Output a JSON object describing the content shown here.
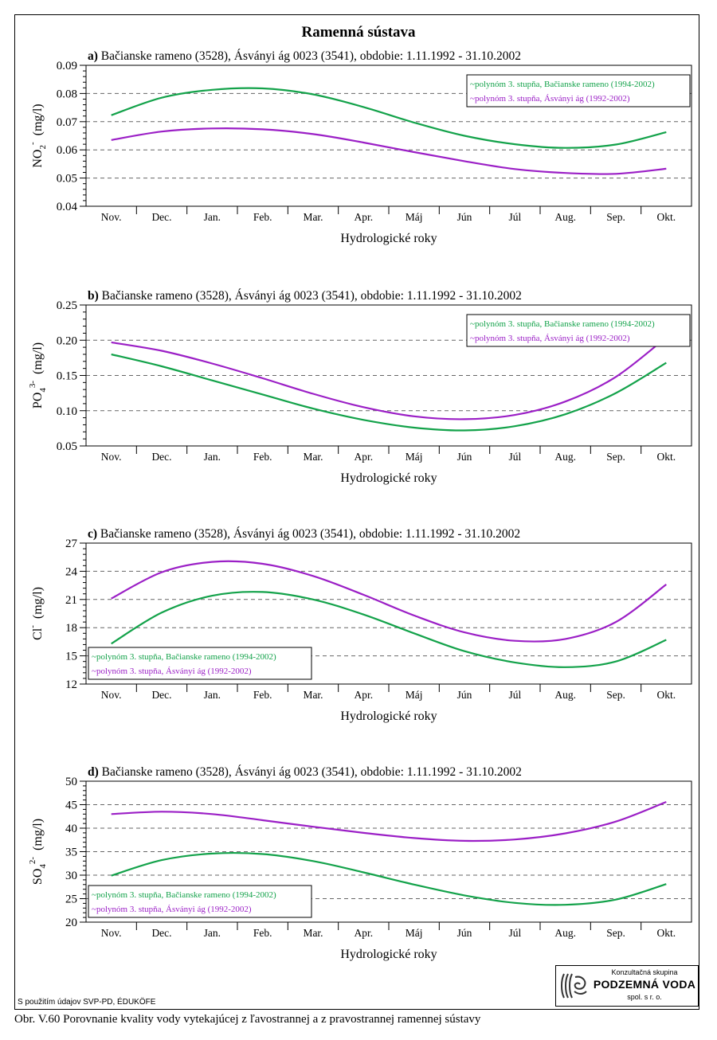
{
  "main_title": "Ramenná sústava",
  "source_note": "S použitím údajov SVP-PD, ÉDUKÖFE",
  "caption": "Obr. V.60 Porovnanie kvality vody vytekajúcej z ľavostrannej a z pravostrannej ramennej sústavy",
  "logo": {
    "line1": "Konzultačná skupina",
    "line2": "PODZEMNÁ VODA",
    "line3": "spol. s r. o."
  },
  "colors": {
    "green": "#13a24a",
    "purple": "#9b1fc6"
  },
  "chart_data": [
    {
      "type": "line",
      "panel_label": "a)",
      "title": "Bačianske rameno (3528), Ásványi ág 0023 (3541), obdobie: 1.11.1992 - 31.10.2002",
      "ylabel": {
        "main": "NO",
        "sub": "2",
        "sup": "-",
        "unit": "(mg/l)"
      },
      "xlabel": "Hydrologické roky",
      "categories": [
        "Nov.",
        "Dec.",
        "Jan.",
        "Feb.",
        "Mar.",
        "Apr.",
        "Máj",
        "Jún",
        "Júl",
        "Aug.",
        "Sep.",
        "Okt."
      ],
      "ylim": [
        0.04,
        0.09
      ],
      "yticks": [
        "0.04",
        "0.05",
        "0.06",
        "0.07",
        "0.08",
        "0.09"
      ],
      "grid": "dashed horizontal",
      "legend_position": "top-right",
      "series": [
        {
          "name": "polynóm 3. stupňa, Bačianske rameno (1994-2002)",
          "color": "green",
          "values": [
            0.0723,
            0.0785,
            0.0813,
            0.0818,
            0.0797,
            0.0752,
            0.0697,
            0.065,
            0.062,
            0.0607,
            0.0619,
            0.0663
          ]
        },
        {
          "name": "polynóm 3. stupňa, Ásványi ág (1992-2002)",
          "color": "purple",
          "values": [
            0.0635,
            0.0665,
            0.0676,
            0.0673,
            0.0656,
            0.0626,
            0.0592,
            0.056,
            0.0532,
            0.0518,
            0.0515,
            0.0533
          ]
        }
      ]
    },
    {
      "type": "line",
      "panel_label": "b)",
      "title": "Bačianske rameno (3528), Ásványi ág 0023 (3541), obdobie: 1.11.1992 - 31.10.2002",
      "ylabel": {
        "main": "PO",
        "sub": "4",
        "sup": "3-",
        "unit": "(mg/l)"
      },
      "xlabel": "Hydrologické roky",
      "categories": [
        "Nov.",
        "Dec.",
        "Jan.",
        "Feb.",
        "Mar.",
        "Apr.",
        "Máj",
        "Jún",
        "Júl",
        "Aug.",
        "Sep.",
        "Okt."
      ],
      "ylim": [
        0.05,
        0.25
      ],
      "yticks": [
        "0.05",
        "0.10",
        "0.15",
        "0.20",
        "0.25"
      ],
      "grid": "dashed horizontal",
      "legend_position": "top-right",
      "series": [
        {
          "name": "polynóm 3. stupňa, Bačianske rameno (1994-2002)",
          "color": "green",
          "values": [
            0.18,
            0.163,
            0.143,
            0.123,
            0.103,
            0.087,
            0.076,
            0.072,
            0.078,
            0.095,
            0.125,
            0.168
          ]
        },
        {
          "name": "polynóm 3. stupňa, Ásványi ág (1992-2002)",
          "color": "purple",
          "values": [
            0.197,
            0.185,
            0.167,
            0.146,
            0.124,
            0.105,
            0.092,
            0.088,
            0.094,
            0.113,
            0.148,
            0.204
          ]
        }
      ]
    },
    {
      "type": "line",
      "panel_label": "c)",
      "title": "Bačianske rameno (3528), Ásványi ág 0023 (3541), obdobie: 1.11.1992 - 31.10.2002",
      "ylabel": {
        "main": "Cl",
        "sub": "",
        "sup": "-",
        "unit": "(mg/l)"
      },
      "xlabel": "Hydrologické roky",
      "categories": [
        "Nov.",
        "Dec.",
        "Jan.",
        "Feb.",
        "Mar.",
        "Apr.",
        "Máj",
        "Jún",
        "Júl",
        "Aug.",
        "Sep.",
        "Okt."
      ],
      "ylim": [
        12,
        27
      ],
      "yticks": [
        "12",
        "15",
        "18",
        "21",
        "24",
        "27"
      ],
      "grid": "dashed horizontal",
      "legend_position": "bottom-left",
      "series": [
        {
          "name": "polynóm 3. stupňa, Bačianske rameno (1994-2002)",
          "color": "green",
          "values": [
            16.3,
            19.6,
            21.4,
            21.8,
            21.0,
            19.4,
            17.4,
            15.5,
            14.3,
            13.8,
            14.4,
            16.7
          ]
        },
        {
          "name": "polynóm 3. stupňa, Ásványi ág (1992-2002)",
          "color": "purple",
          "values": [
            21.1,
            23.9,
            25.0,
            24.8,
            23.5,
            21.5,
            19.3,
            17.5,
            16.6,
            16.8,
            18.6,
            22.6
          ]
        }
      ]
    },
    {
      "type": "line",
      "panel_label": "d)",
      "title": "Bačianske rameno (3528), Ásványi ág 0023 (3541), obdobie: 1.11.1992 - 31.10.2002",
      "ylabel": {
        "main": "SO",
        "sub": "4",
        "sup": "2-",
        "unit": "(mg/l)"
      },
      "xlabel": "Hydrologické roky",
      "categories": [
        "Nov.",
        "Dec.",
        "Jan.",
        "Feb.",
        "Mar.",
        "Apr.",
        "Máj",
        "Jún",
        "Júl",
        "Aug.",
        "Sep.",
        "Okt."
      ],
      "ylim": [
        20,
        50
      ],
      "yticks": [
        "20",
        "25",
        "30",
        "35",
        "40",
        "45",
        "50"
      ],
      "grid": "dashed horizontal",
      "legend_position": "bottom-left",
      "series": [
        {
          "name": "polynóm 3. stupňa, Bačianske rameno (1994-2002)",
          "color": "green",
          "values": [
            29.9,
            33.2,
            34.6,
            34.5,
            33.0,
            30.6,
            28.0,
            25.7,
            24.1,
            23.7,
            24.8,
            28.1
          ]
        },
        {
          "name": "polynóm 3. stupňa, Ásványi ág (1992-2002)",
          "color": "purple",
          "values": [
            43.0,
            43.5,
            43.0,
            41.7,
            40.3,
            39.0,
            37.9,
            37.3,
            37.6,
            38.9,
            41.4,
            45.6
          ]
        }
      ]
    }
  ]
}
